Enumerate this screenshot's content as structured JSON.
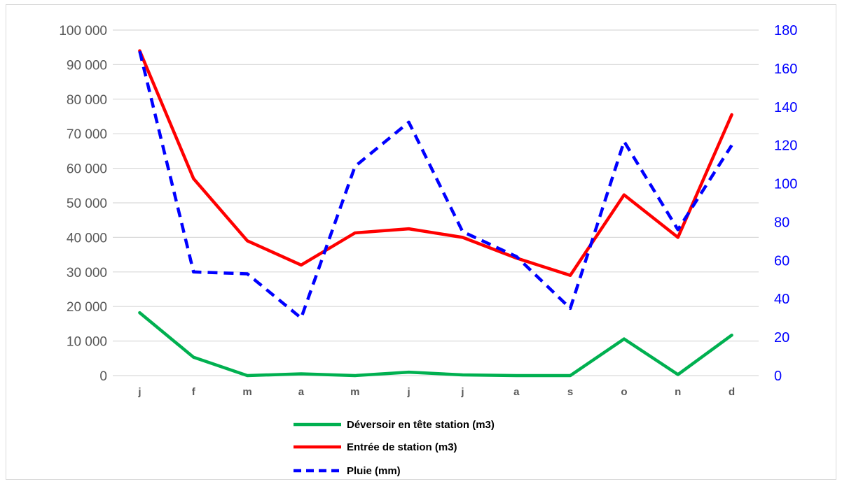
{
  "chart_data": {
    "type": "line",
    "title": "",
    "categories": [
      "j",
      "f",
      "m",
      "a",
      "m",
      "j",
      "j",
      "a",
      "s",
      "o",
      "n",
      "d"
    ],
    "series": [
      {
        "name": "Déversoir en tête station (m3)",
        "axis": "left",
        "color": "#00b050",
        "dashed": false,
        "values": [
          18200,
          5300,
          0,
          500,
          0,
          1000,
          200,
          0,
          0,
          10600,
          300,
          11700
        ]
      },
      {
        "name": "Entrée de station (m3)",
        "axis": "left",
        "color": "#ff0000",
        "dashed": false,
        "values": [
          94000,
          57000,
          39000,
          32000,
          41300,
          42500,
          40000,
          34000,
          29000,
          52300,
          40000,
          75500
        ]
      },
      {
        "name": "Pluie (mm)",
        "axis": "right",
        "color": "#0000ff",
        "dashed": true,
        "values": [
          169,
          54,
          53,
          30,
          109,
          132,
          75,
          62,
          35,
          122,
          76,
          120
        ]
      }
    ],
    "y_left": {
      "range": [
        0,
        100000
      ],
      "ticks": [
        0,
        10000,
        20000,
        30000,
        40000,
        50000,
        60000,
        70000,
        80000,
        90000,
        100000
      ],
      "tick_labels": [
        "0",
        "10 000",
        "20 000",
        "30 000",
        "40 000",
        "50 000",
        "60 000",
        "70 000",
        "80 000",
        "90 000",
        "100 000"
      ],
      "color": "#595959"
    },
    "y_right": {
      "range": [
        0,
        180
      ],
      "ticks": [
        0,
        20,
        40,
        60,
        80,
        100,
        120,
        140,
        160,
        180
      ],
      "tick_labels": [
        "0",
        "20",
        "40",
        "60",
        "80",
        "100",
        "120",
        "140",
        "160",
        "180"
      ],
      "color": "#0000ff"
    },
    "grid": true,
    "legend_position": "bottom",
    "gridline_color": "#d9d9d9"
  }
}
